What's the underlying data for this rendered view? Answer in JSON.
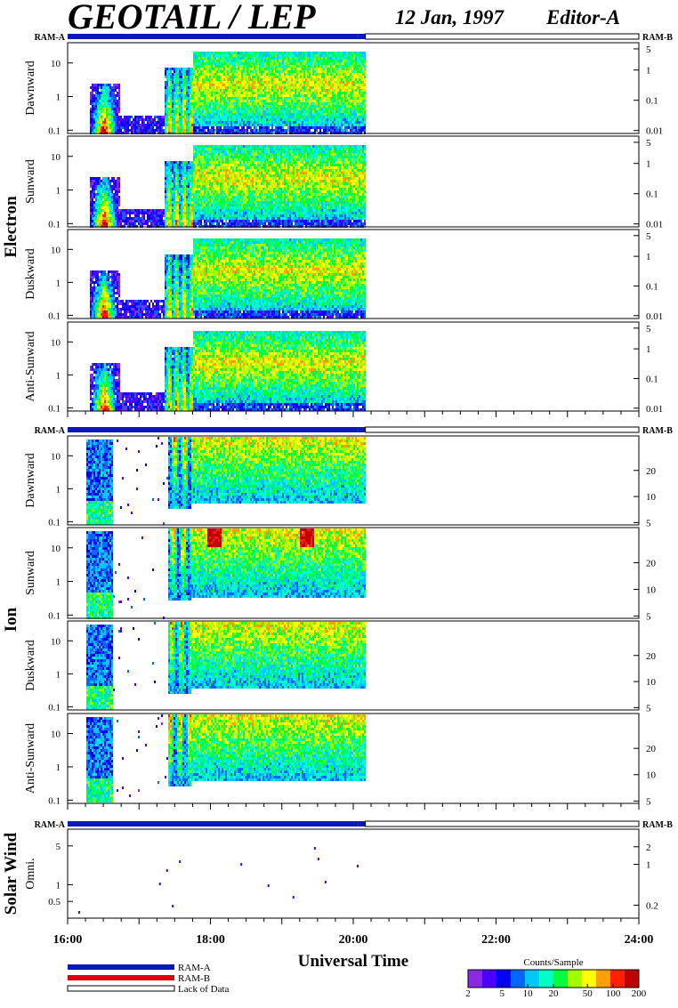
{
  "header": {
    "title": "GEOTAIL / LEP",
    "date": "12 Jan, 1997",
    "editor": "Editor-A"
  },
  "ram_labels": {
    "left": "RAM-A",
    "right": "RAM-B"
  },
  "colors": {
    "ram_a": "#0a1ab8",
    "ram_b": "#e00000",
    "palette": [
      "#8a2be2",
      "#4b00ff",
      "#0000ff",
      "#0066ff",
      "#00c8ff",
      "#00ffc8",
      "#00ff40",
      "#a0ff00",
      "#ffff00",
      "#ffa000",
      "#ff2000",
      "#c00000"
    ]
  },
  "chart_data": {
    "type": "heatmap",
    "x_axis": {
      "label": "Universal Time",
      "range_hours": [
        16,
        24
      ],
      "tick_labels": [
        "16:00",
        "18:00",
        "20:00",
        "22:00",
        "24:00"
      ],
      "tick_hours": [
        16,
        18,
        20,
        22,
        24
      ],
      "minor_step_hours": 0.25
    },
    "data_end_hour": 20.17,
    "ram_a_end_hour": 20.07,
    "groups": [
      {
        "label": "Electron",
        "panels": [
          {
            "label": "Dawnward",
            "left_ticks": [
              "10",
              "1",
              "0.1"
            ],
            "left_tick_values": [
              10,
              1,
              0.1
            ],
            "left_range": [
              0.08,
              40
            ],
            "right_ticks": [
              "5",
              "1",
              "0.1",
              "0.01"
            ],
            "right_tick_values": [
              5,
              1,
              0.1,
              0.01
            ],
            "right_range": [
              0.008,
              8
            ]
          },
          {
            "label": "Sunward",
            "left_ticks": [
              "10",
              "1",
              "0.1"
            ],
            "left_tick_values": [
              10,
              1,
              0.1
            ],
            "left_range": [
              0.08,
              40
            ],
            "right_ticks": [
              "5",
              "1",
              "0.1",
              "0.01"
            ],
            "right_tick_values": [
              5,
              1,
              0.1,
              0.01
            ],
            "right_range": [
              0.008,
              8
            ]
          },
          {
            "label": "Duskward",
            "left_ticks": [
              "10",
              "1",
              "0.1"
            ],
            "left_tick_values": [
              10,
              1,
              0.1
            ],
            "left_range": [
              0.08,
              40
            ],
            "right_ticks": [
              "5",
              "1",
              "0.1",
              "0.01"
            ],
            "right_tick_values": [
              5,
              1,
              0.1,
              0.01
            ],
            "right_range": [
              0.008,
              8
            ]
          },
          {
            "label": "Anti-Sunward",
            "left_ticks": [
              "10",
              "1",
              "0.1"
            ],
            "left_tick_values": [
              10,
              1,
              0.1
            ],
            "left_range": [
              0.08,
              40
            ],
            "right_ticks": [
              "5",
              "1",
              "0.1",
              "0.01"
            ],
            "right_tick_values": [
              5,
              1,
              0.1,
              0.01
            ],
            "right_range": [
              0.008,
              8
            ]
          }
        ]
      },
      {
        "label": "Ion",
        "panels": [
          {
            "label": "Dawnward",
            "left_ticks": [
              "10",
              "1",
              "0.1"
            ],
            "left_tick_values": [
              10,
              1,
              0.1
            ],
            "left_range": [
              0.08,
              40
            ],
            "right_ticks": [
              "20",
              "10",
              "5"
            ],
            "right_tick_values": [
              20,
              10,
              5
            ],
            "right_range": [
              4.7,
              50
            ]
          },
          {
            "label": "Sunward",
            "left_ticks": [
              "10",
              "1",
              "0.1"
            ],
            "left_tick_values": [
              10,
              1,
              0.1
            ],
            "left_range": [
              0.08,
              40
            ],
            "right_ticks": [
              "20",
              "10",
              "5"
            ],
            "right_tick_values": [
              20,
              10,
              5
            ],
            "right_range": [
              4.7,
              50
            ]
          },
          {
            "label": "Duskward",
            "left_ticks": [
              "10",
              "1",
              "0.1"
            ],
            "left_tick_values": [
              10,
              1,
              0.1
            ],
            "left_range": [
              0.08,
              40
            ],
            "right_ticks": [
              "20",
              "10",
              "5"
            ],
            "right_tick_values": [
              20,
              10,
              5
            ],
            "right_range": [
              4.7,
              50
            ]
          },
          {
            "label": "Anti-Sunward",
            "left_ticks": [
              "10",
              "1",
              "0.1"
            ],
            "left_tick_values": [
              10,
              1,
              0.1
            ],
            "left_range": [
              0.08,
              40
            ],
            "right_ticks": [
              "20",
              "10",
              "5"
            ],
            "right_tick_values": [
              20,
              10,
              5
            ],
            "right_range": [
              4.7,
              50
            ]
          }
        ]
      },
      {
        "label": "Solar Wind",
        "panels": [
          {
            "label": "Omni.",
            "left_ticks": [
              "5",
              "1",
              "0.5"
            ],
            "left_tick_values": [
              5,
              1,
              0.5
            ],
            "left_range": [
              0.25,
              10
            ],
            "right_ticks": [
              "2",
              "1",
              "0.2"
            ],
            "right_tick_values": [
              2,
              1,
              0.2
            ],
            "right_range": [
              0.12,
              4
            ]
          }
        ]
      }
    ],
    "colorbar": {
      "title": "Counts/Sample",
      "tick_labels": [
        "2",
        "5",
        "10",
        "20",
        "50",
        "100",
        "200"
      ],
      "tick_values": [
        2,
        5,
        10,
        20,
        50,
        100,
        200
      ],
      "range": [
        2,
        200
      ],
      "scale": "log"
    },
    "legend": [
      "RAM-A",
      "RAM-B",
      "Lack of Data"
    ]
  }
}
